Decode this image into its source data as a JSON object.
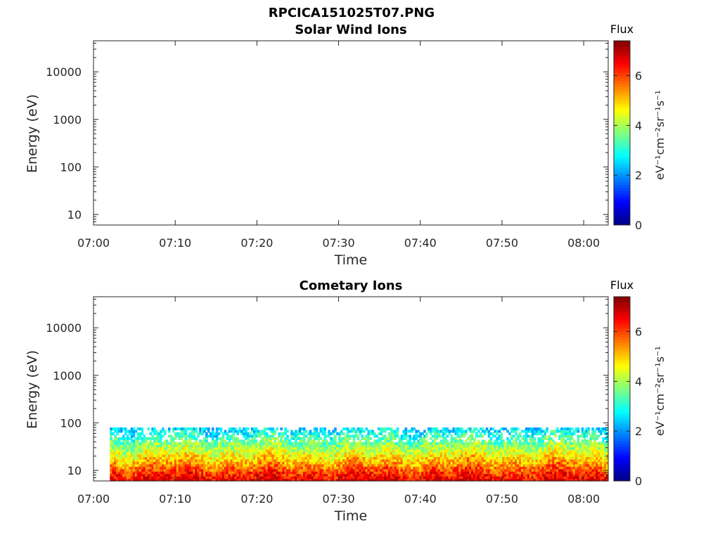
{
  "figure_title": "RPCICA151025T07.PNG",
  "chart_data": [
    {
      "type": "heatmap",
      "title": "Solar Wind Ions",
      "xlabel": "Time",
      "ylabel": "Energy (eV)",
      "xticks": [
        "07:00",
        "07:10",
        "07:20",
        "07:30",
        "07:40",
        "07:50",
        "08:00"
      ],
      "xlim": [
        "07:00",
        "08:03"
      ],
      "yscale": "log",
      "yticks": [
        "10",
        "100",
        "1000",
        "10000"
      ],
      "ylim": [
        6,
        45000
      ],
      "colorbar": {
        "label": "Flux",
        "units": "eV⁻¹cm⁻²sr⁻¹s⁻¹",
        "ticks": [
          "0",
          "2",
          "4",
          "6"
        ],
        "range": [
          0,
          7.4
        ],
        "colormap": "jet"
      },
      "data_present": false,
      "box": true,
      "grid": false
    },
    {
      "type": "heatmap",
      "title": "Cometary Ions",
      "xlabel": "Time",
      "ylabel": "Energy (eV)",
      "xticks": [
        "07:00",
        "07:10",
        "07:20",
        "07:30",
        "07:40",
        "07:50",
        "08:00"
      ],
      "xlim": [
        "07:00",
        "08:03"
      ],
      "yscale": "log",
      "yticks": [
        "10",
        "100",
        "1000",
        "10000"
      ],
      "ylim": [
        6,
        45000
      ],
      "colorbar": {
        "label": "Flux",
        "units": "eV⁻¹cm⁻²sr⁻¹s⁻¹",
        "ticks": [
          "0",
          "2",
          "4",
          "6"
        ],
        "range": [
          0,
          7.4
        ],
        "colormap": "jet"
      },
      "data_present": true,
      "data_time_range": [
        "07:02",
        "08:03"
      ],
      "data_energy_range": [
        6,
        80
      ],
      "flux_range": [
        2,
        7
      ],
      "box": true,
      "grid": false
    }
  ]
}
